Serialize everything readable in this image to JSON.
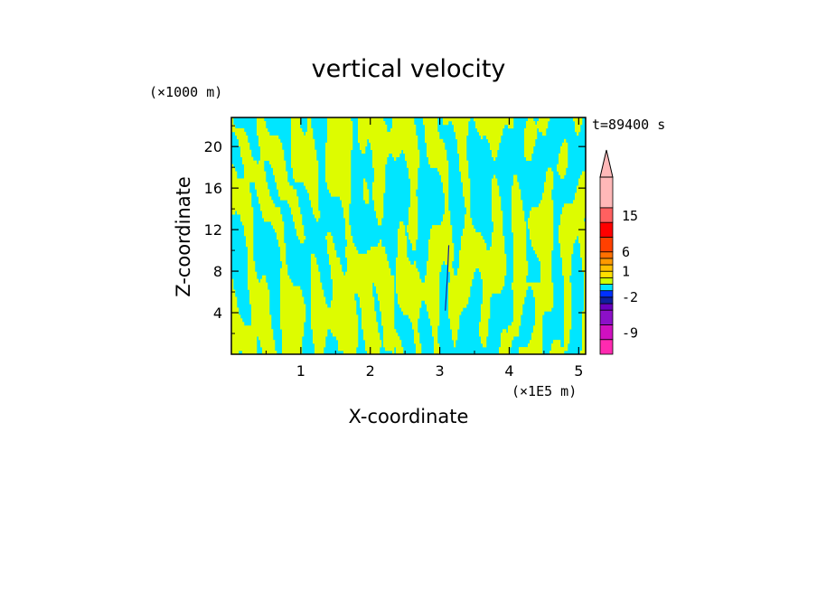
{
  "chart_data": {
    "type": "heatmap",
    "title": "vertical velocity",
    "xlabel": "X-coordinate",
    "ylabel": "Z-coordinate",
    "x_unit": "(×1E5 m)",
    "y_unit": "(×1000 m)",
    "time_label": "t=89400 s",
    "xlim": [
      0,
      5.1
    ],
    "ylim": [
      0,
      22.8
    ],
    "x_ticks": [
      "1",
      "2",
      "3",
      "4",
      "5"
    ],
    "x_tick_values": [
      1,
      2,
      3,
      4,
      5
    ],
    "y_ticks": [
      "4",
      "8",
      "12",
      "16",
      "20"
    ],
    "y_tick_values": [
      4,
      8,
      12,
      16,
      20
    ],
    "pattern": {
      "dominant_positive": "weak updraft band between 0 and 1 (yellow)",
      "dominant_negative": "weak downdraft band between -1 and 0 (cyan)",
      "note": "alternating narrow updraft/downdraft streaks, fan-shaped convergence centered near x=3.1"
    },
    "colorbar": {
      "levels": [
        -12,
        -9,
        -6,
        -4,
        -2,
        -1,
        0,
        0.5,
        1,
        2,
        3,
        6,
        9,
        12,
        15,
        20
      ],
      "colors": [
        "#ff2ab0",
        "#d010c0",
        "#8c10c8",
        "#6a00c0",
        "#1020a0",
        "#0030ff",
        "#00e6ff",
        "#ccff00",
        "#ffe000",
        "#ffc000",
        "#ff9900",
        "#ff7000",
        "#ff4000",
        "#ff0000",
        "#ff6060",
        "#ffb8b8"
      ],
      "labels": [
        "15",
        "6",
        "1",
        "-2",
        "-9"
      ],
      "label_values": [
        15,
        6,
        1,
        -2,
        -9
      ],
      "extend": "max"
    },
    "field_colors": {
      "up": "#ddfc00",
      "down": "#00e6ff",
      "jet": "#1020a0"
    }
  }
}
